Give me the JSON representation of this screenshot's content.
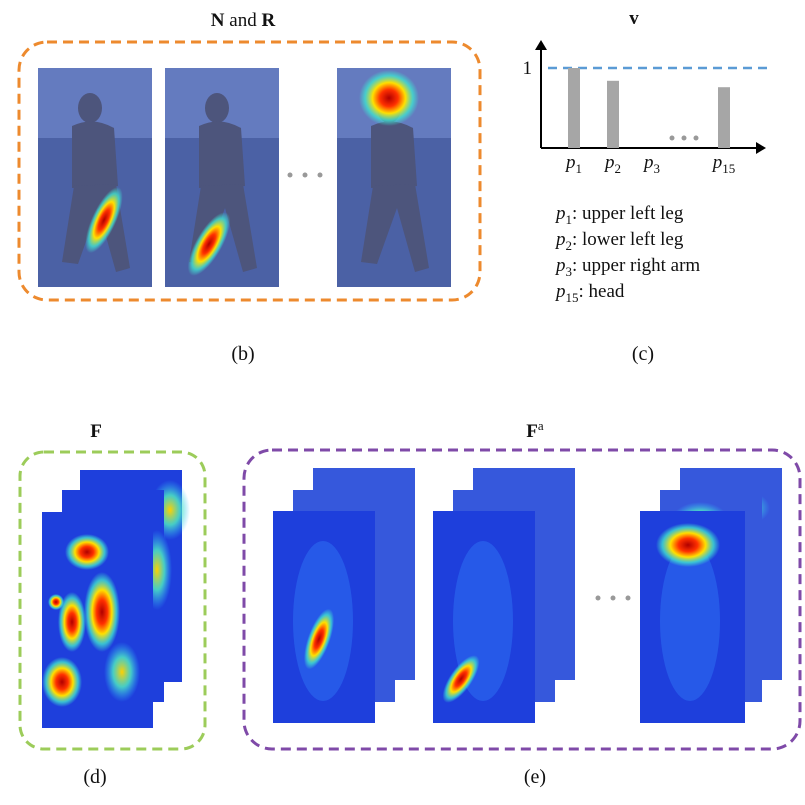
{
  "panels": {
    "b": {
      "title": [
        "N",
        " and ",
        "R"
      ],
      "caption": "(b)"
    },
    "c": {
      "title": "v",
      "caption": "(c)",
      "chart": {
        "type": "bar",
        "categories": [
          {
            "base": "p",
            "sub": "1"
          },
          {
            "base": "p",
            "sub": "2"
          },
          {
            "base": "p",
            "sub": "3"
          },
          {
            "base": "p",
            "sub": "15"
          }
        ],
        "values": [
          1,
          0.84,
          0,
          0.76
        ],
        "color": "#a6a6a6",
        "ylim": [
          0,
          1.25
        ],
        "yticks": [
          1
        ],
        "reference_color": "#5b9bd5"
      },
      "legend": [
        {
          "base": "p",
          "sub": "1",
          "text": ": upper left leg"
        },
        {
          "base": "p",
          "sub": "2",
          "text": ": lower left leg"
        },
        {
          "base": "p",
          "sub": "3",
          "text": ": upper right arm"
        },
        {
          "base": "p",
          "sub": "15",
          "text": ": head"
        }
      ]
    },
    "d": {
      "title": "F",
      "caption": "(d)"
    },
    "e": {
      "title": {
        "base": "F",
        "sup": "a"
      },
      "caption": "(e)"
    }
  }
}
